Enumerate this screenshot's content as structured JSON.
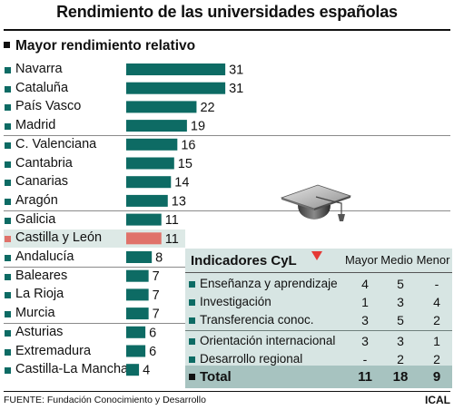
{
  "title": "Rendimiento de las universidades españolas",
  "section_title": "Mayor rendimiento relativo",
  "colors": {
    "bar": "#0d6b64",
    "bar_highlight": "#e0726a",
    "highlight_row": "#dde9e6",
    "panel": "#d7e5e3",
    "total_row": "#a7c3c0",
    "arrow": "#e53935"
  },
  "chart_data": {
    "type": "bar",
    "orientation": "horizontal",
    "title": "Mayor rendimiento relativo",
    "categories": [
      "Navarra",
      "Cataluña",
      "País Vasco",
      "Madrid",
      "C. Valenciana",
      "Cantabria",
      "Canarias",
      "Aragón",
      "Galicia",
      "Castilla y León",
      "Andalucía",
      "Baleares",
      "La Rioja",
      "Murcia",
      "Asturias",
      "Extremadura",
      "Castilla-La Mancha"
    ],
    "values": [
      31,
      31,
      22,
      19,
      16,
      15,
      14,
      13,
      11,
      11,
      8,
      7,
      7,
      7,
      6,
      6,
      4
    ],
    "highlighted_category": "Castilla y León",
    "value_labels": [
      "31",
      "31",
      "22",
      "19",
      "16",
      "15",
      "14",
      "13",
      "11",
      "11",
      "8",
      "7",
      "7",
      "7",
      "6",
      "6",
      "4"
    ]
  },
  "indicators": {
    "title": "Indicadores CyL",
    "icon": "graduation-cap-icon",
    "columns": [
      "Mayor",
      "Medio",
      "Menor"
    ],
    "rows": [
      {
        "name": "Enseñanza y aprendizaje",
        "values": [
          "4",
          "5",
          "-"
        ]
      },
      {
        "name": "Investigación",
        "values": [
          "1",
          "3",
          "4"
        ]
      },
      {
        "name": "Transferencia conoc.",
        "values": [
          "3",
          "5",
          "2"
        ]
      },
      {
        "name": "Orientación internacional",
        "values": [
          "3",
          "3",
          "1"
        ]
      },
      {
        "name": "Desarrollo regional",
        "values": [
          "-",
          "2",
          "2"
        ]
      }
    ],
    "total": {
      "name": "Total",
      "values": [
        "11",
        "18",
        "9"
      ]
    }
  },
  "footer": {
    "source": "FUENTE: Fundación Conocimiento y Desarrollo",
    "credit": "ICAL"
  }
}
